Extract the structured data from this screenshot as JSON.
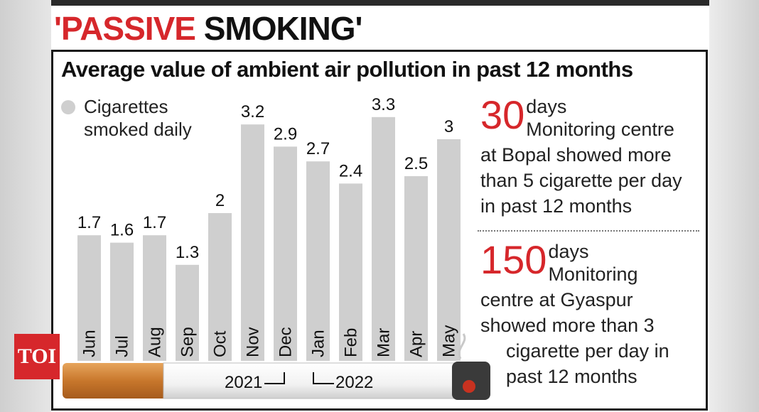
{
  "headline": {
    "quoted": "'PASSIVE",
    "rest": "SMOKING'"
  },
  "chart_data": {
    "type": "bar",
    "title": "Average value of ambient air pollution in past 12 months",
    "legend": [
      "Cigarettes smoked daily"
    ],
    "categories": [
      "Jun",
      "Jul",
      "Aug",
      "Sep",
      "Oct",
      "Nov",
      "Dec",
      "Jan",
      "Feb",
      "Mar",
      "Apr",
      "May"
    ],
    "series": [
      {
        "name": "Cigarettes smoked daily",
        "values": [
          1.7,
          1.6,
          1.7,
          1.3,
          2,
          3.2,
          2.9,
          2.7,
          2.4,
          3.3,
          2.5,
          3
        ]
      }
    ],
    "value_labels": [
      "1.7",
      "1.6",
      "1.7",
      "1.3",
      "2",
      "3.2",
      "2.9",
      "2.7",
      "2.4",
      "3.3",
      "2.5",
      "3"
    ],
    "year_labels": [
      "2021",
      "2022"
    ],
    "bar_color": "#cfcfcf"
  },
  "stats": [
    {
      "number": "30",
      "lines": [
        "days",
        "Monitoring centre",
        "at Bopal showed more",
        "than 5 cigarette per day",
        "in past 12 months"
      ]
    },
    {
      "number": "150",
      "lines": [
        "days",
        "Monitoring",
        "centre at Gyaspur",
        "showed more than 3",
        "cigarette per day in",
        "past 12 months"
      ]
    }
  ],
  "badge": "TOI",
  "colors": {
    "accent": "#d6272b",
    "text": "#111111"
  }
}
